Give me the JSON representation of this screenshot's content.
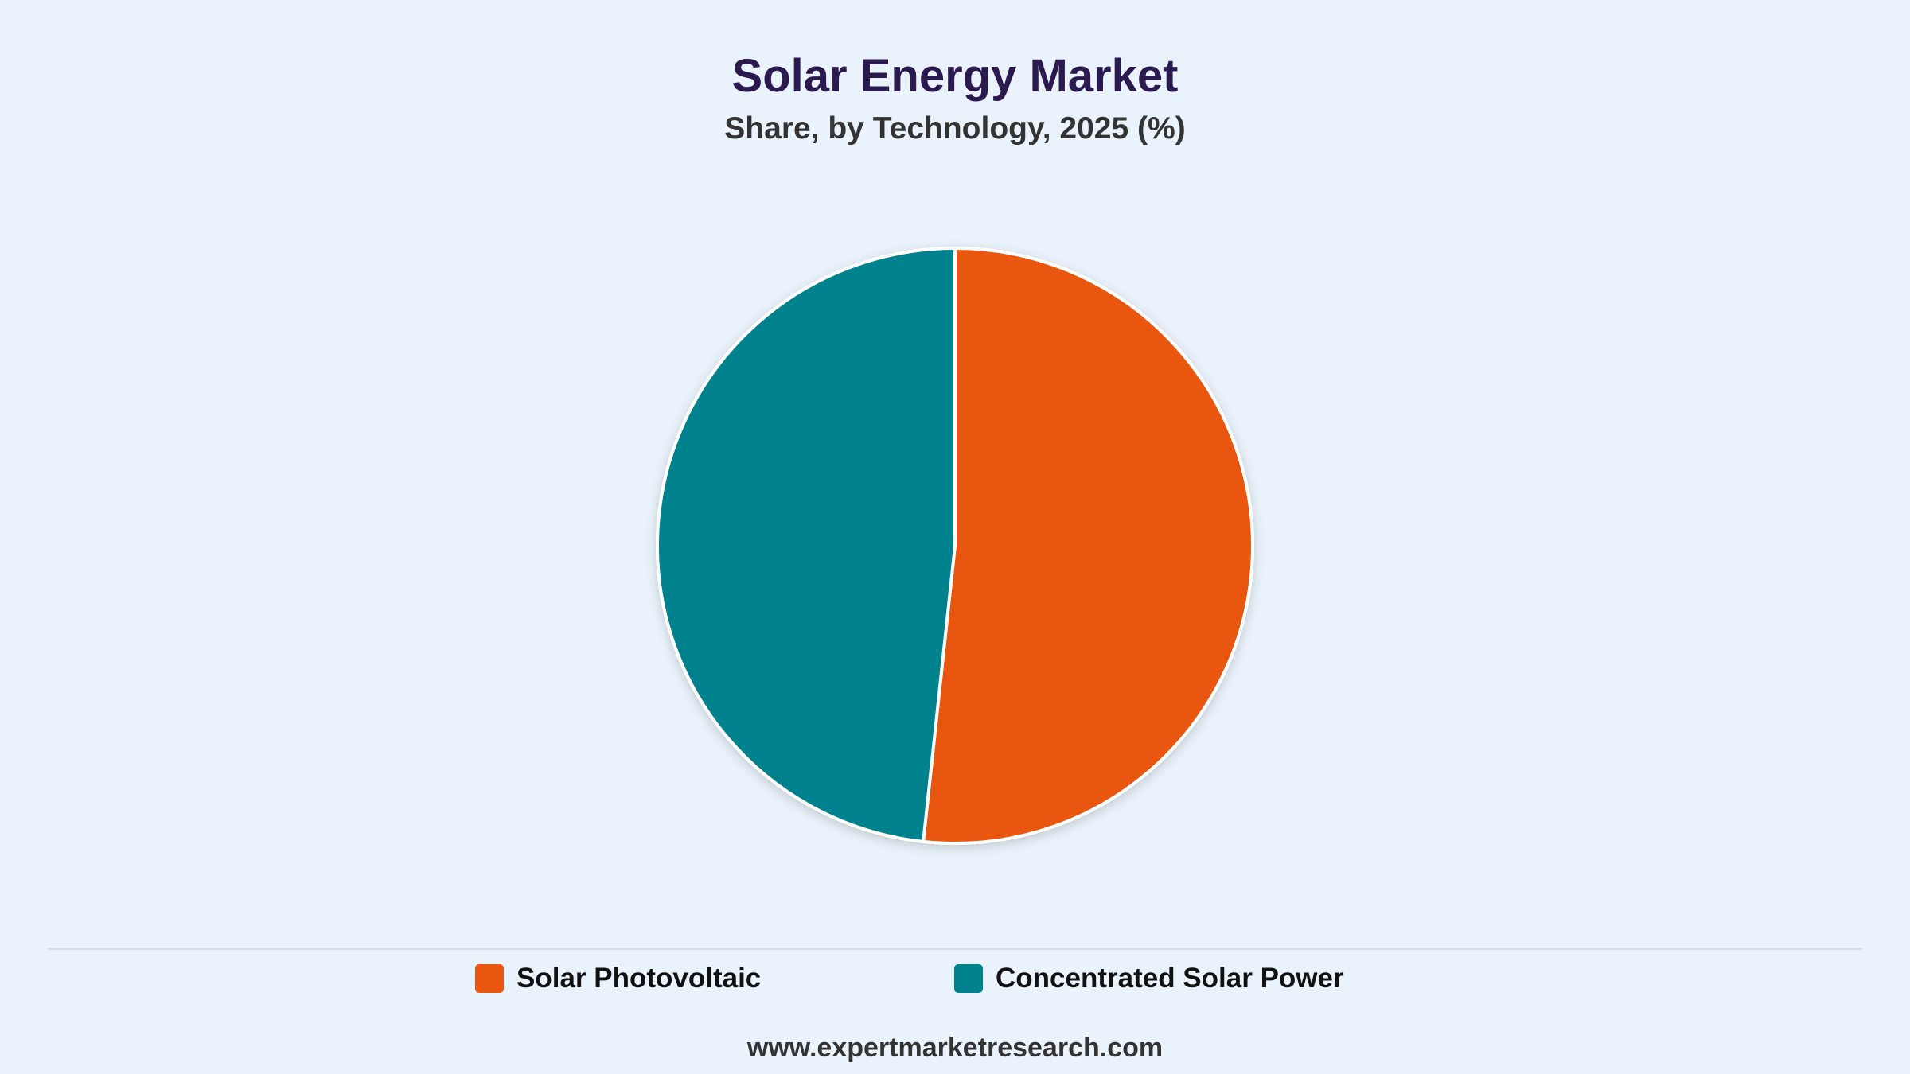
{
  "title": "Solar Energy Market",
  "subtitle": "Share, by Technology, 2025 (%)",
  "footer": "www.expertmarketresearch.com",
  "colors": {
    "solar_photovoltaic": "#e8560f",
    "concentrated_solar_power": "#00818e",
    "background": "#eaf3fc"
  },
  "chart_data": {
    "type": "pie",
    "title": "Solar Energy Market",
    "subtitle": "Share, by Technology, 2025 (%)",
    "categories": [
      "Solar Photovoltaic",
      "Concentrated Solar Power"
    ],
    "values": [
      51.7,
      48.3
    ],
    "colors": [
      "#e8560f",
      "#00818e"
    ],
    "legend_position": "bottom"
  },
  "legend": {
    "items": [
      {
        "label": "Solar Photovoltaic"
      },
      {
        "label": "Concentrated Solar Power"
      }
    ]
  }
}
